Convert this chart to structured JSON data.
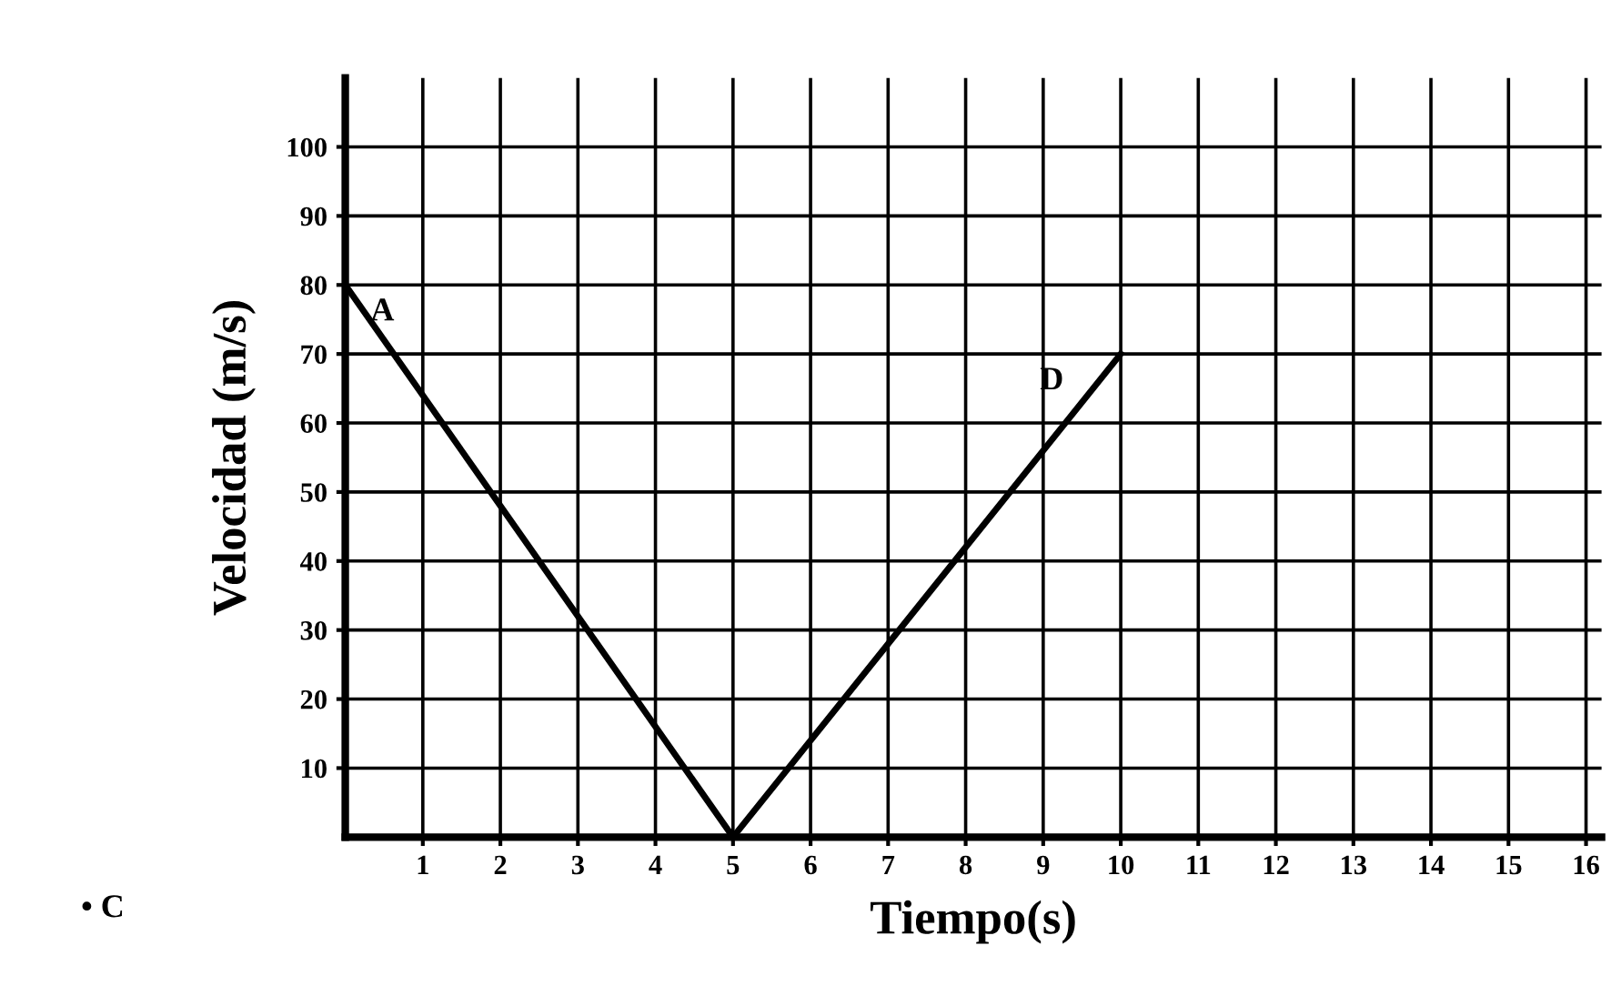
{
  "chart_data": {
    "type": "line",
    "xlabel": "Tiempo(s)",
    "ylabel": "Velocidad (m/s)",
    "x": [
      0,
      5,
      10
    ],
    "series": [
      {
        "color": "#000000",
        "values": [
          80,
          0,
          70
        ]
      }
    ],
    "xlim": [
      0,
      16.2
    ],
    "ylim": [
      0,
      110
    ],
    "xticks": [
      1,
      2,
      3,
      4,
      5,
      6,
      7,
      8,
      9,
      10,
      11,
      12,
      13,
      14,
      15,
      16
    ],
    "yticks": [
      10,
      20,
      30,
      40,
      50,
      60,
      70,
      80,
      90,
      100
    ],
    "grid": true,
    "legend": false,
    "marker": "none",
    "line_style": "solid",
    "annotations": [
      {
        "text": "A",
        "x": 0,
        "y": 80
      },
      {
        "text": "D",
        "x": 10,
        "y": 70
      },
      "• C"
    ]
  }
}
